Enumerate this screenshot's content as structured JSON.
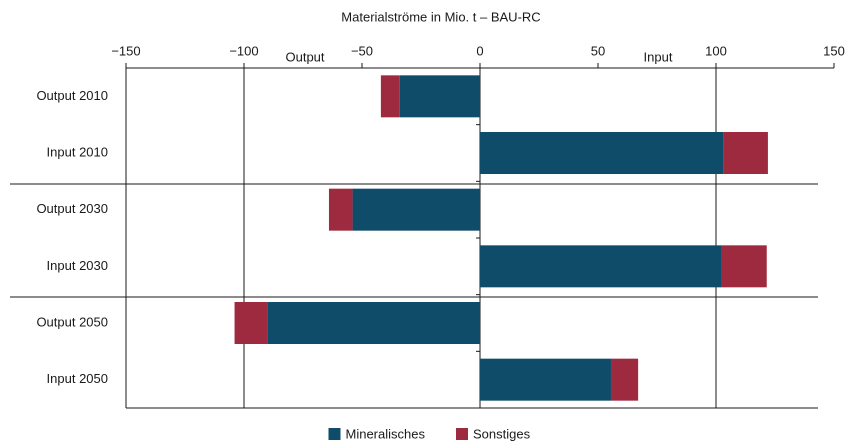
{
  "chart_data": {
    "type": "bar",
    "orientation": "horizontal",
    "stacked": true,
    "title": "Materialströme in Mio. t – BAU-RC",
    "annotations": [
      "Output",
      "Input"
    ],
    "categories": [
      "Output 2010",
      "Input 2010",
      "Output 2030",
      "Input 2030",
      "Output 2050",
      "Input 2050"
    ],
    "series": [
      {
        "name": "Mineralisches",
        "color": "#0f4c6a",
        "values": [
          -34,
          103,
          -54,
          102.5,
          -90,
          55.5
        ]
      },
      {
        "name": "Sonstiges",
        "color": "#9e2a3f",
        "values": [
          -8,
          19,
          -10,
          19,
          -14,
          11.5
        ]
      }
    ],
    "xlim": [
      -150,
      150
    ],
    "xticks": [
      {
        "value": -150,
        "label": "−150"
      },
      {
        "value": -100,
        "label": "−100"
      },
      {
        "value": -50,
        "label": "−50"
      },
      0,
      50,
      100,
      150
    ],
    "legend": "bottom"
  }
}
